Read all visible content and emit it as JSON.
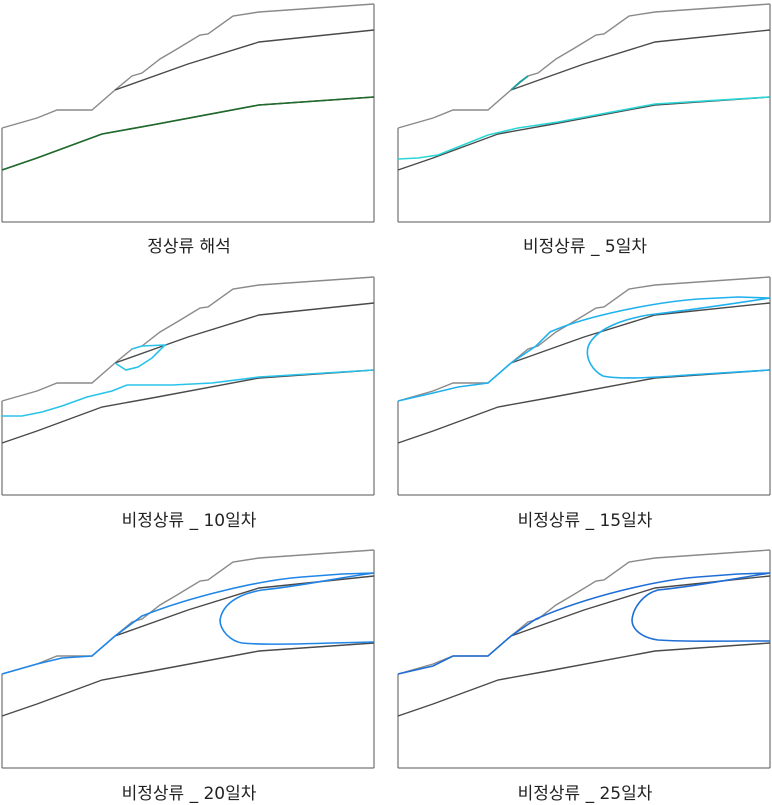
{
  "panels": [
    {
      "caption": "정상류 해석",
      "phreatic_color": "#1e6b2c"
    },
    {
      "caption": "비정상류 _ 5일차",
      "phreatic_color": "#2ad6d6"
    },
    {
      "caption": "비정상류 _ 10일차",
      "phreatic_color": "#29c3ea"
    },
    {
      "caption": "비정상류 _ 15일차",
      "phreatic_color": "#1fb1ee"
    },
    {
      "caption": "비정상류 _ 20일차",
      "phreatic_color": "#1f86e8"
    },
    {
      "caption": "비정상류 _ 25일차",
      "phreatic_color": "#1f6ed6"
    }
  ],
  "colors": {
    "ground_surface": "#8a8a8a",
    "layer_boundary": "#4a4a4a",
    "frame": "#555555"
  }
}
